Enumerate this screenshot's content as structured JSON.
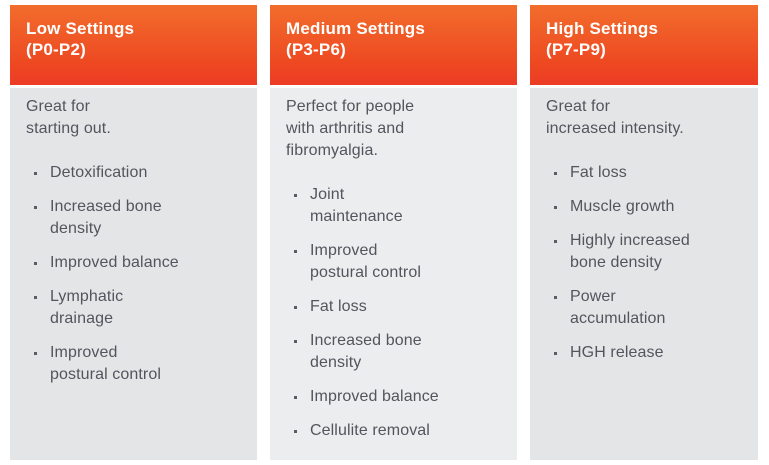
{
  "colors": {
    "header_gradient_top": "#F26D2C",
    "header_gradient_bottom": "#EC3C24",
    "header_text": "#FFFFFF",
    "outer_column_bg": "#E4E5E7",
    "middle_column_bg": "#ECEDEE",
    "body_text": "#52555D"
  },
  "columns": [
    {
      "title": "Low Settings",
      "range": "(P0-P2)",
      "description": "Great for\nstarting out.",
      "benefits": [
        "Detoxification",
        "Increased bone\ndensity",
        "Improved balance",
        "Lymphatic\ndrainage",
        "Improved\npostural control"
      ]
    },
    {
      "title": "Medium Settings",
      "range": "(P3-P6)",
      "description": "Perfect for people\nwith arthritis and\nfibromyalgia.",
      "benefits": [
        "Joint\nmaintenance",
        "Improved\npostural control",
        "Fat loss",
        "Increased bone\ndensity",
        "Improved balance",
        "Cellulite removal"
      ]
    },
    {
      "title": "High Settings",
      "range": "(P7-P9)",
      "description": "Great for\nincreased intensity.",
      "benefits": [
        "Fat loss",
        "Muscle growth",
        "Highly increased\nbone density",
        "Power\naccumulation",
        "HGH release"
      ]
    }
  ]
}
